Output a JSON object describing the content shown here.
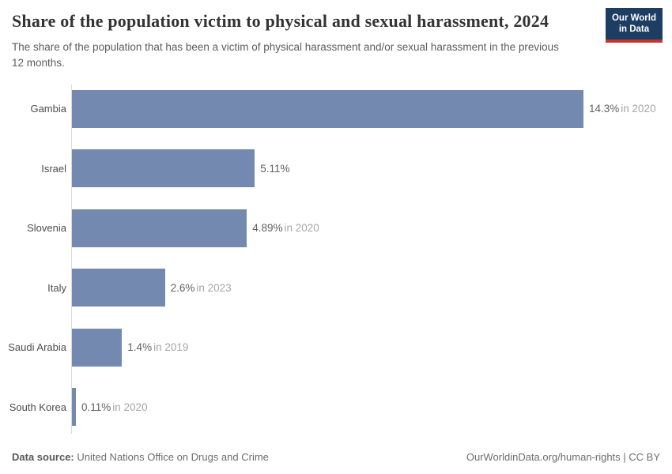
{
  "header": {
    "title": "Share of the population victim to physical and sexual harassment, 2024",
    "subtitle": "The share of the population that has been a victim of physical harassment and/or sexual harassment in the previous 12 months.",
    "logo": {
      "line1": "Our World",
      "line2": "in Data"
    }
  },
  "chart_data": {
    "type": "bar",
    "orientation": "horizontal",
    "title": "Share of the population victim to physical and sexual harassment, 2024",
    "categories": [
      "Gambia",
      "Israel",
      "Slovenia",
      "Italy",
      "Saudi Arabia",
      "South Korea"
    ],
    "values": [
      14.3,
      5.11,
      4.89,
      2.6,
      1.4,
      0.11
    ],
    "value_labels": [
      "14.3%",
      "5.11%",
      "4.89%",
      "2.6%",
      "1.4%",
      "0.11%"
    ],
    "year_labels": [
      "in 2020",
      "",
      "in 2020",
      "in 2023",
      "in 2019",
      "in 2020"
    ],
    "xlim": [
      0,
      14.3
    ],
    "grid": false,
    "legend": false,
    "bar_color": "#7389b0"
  },
  "footer": {
    "source_label": "Data source:",
    "source_value": " United Nations Office on Drugs and Crime",
    "attribution": "OurWorldinData.org/human-rights | CC BY"
  },
  "colors": {
    "bar": "#7389b0",
    "logo_bg": "#1d3d63",
    "logo_accent": "#c4352c",
    "axis_line": "#dadada",
    "value_text": "#606060",
    "year_text": "#a6a6a6"
  }
}
